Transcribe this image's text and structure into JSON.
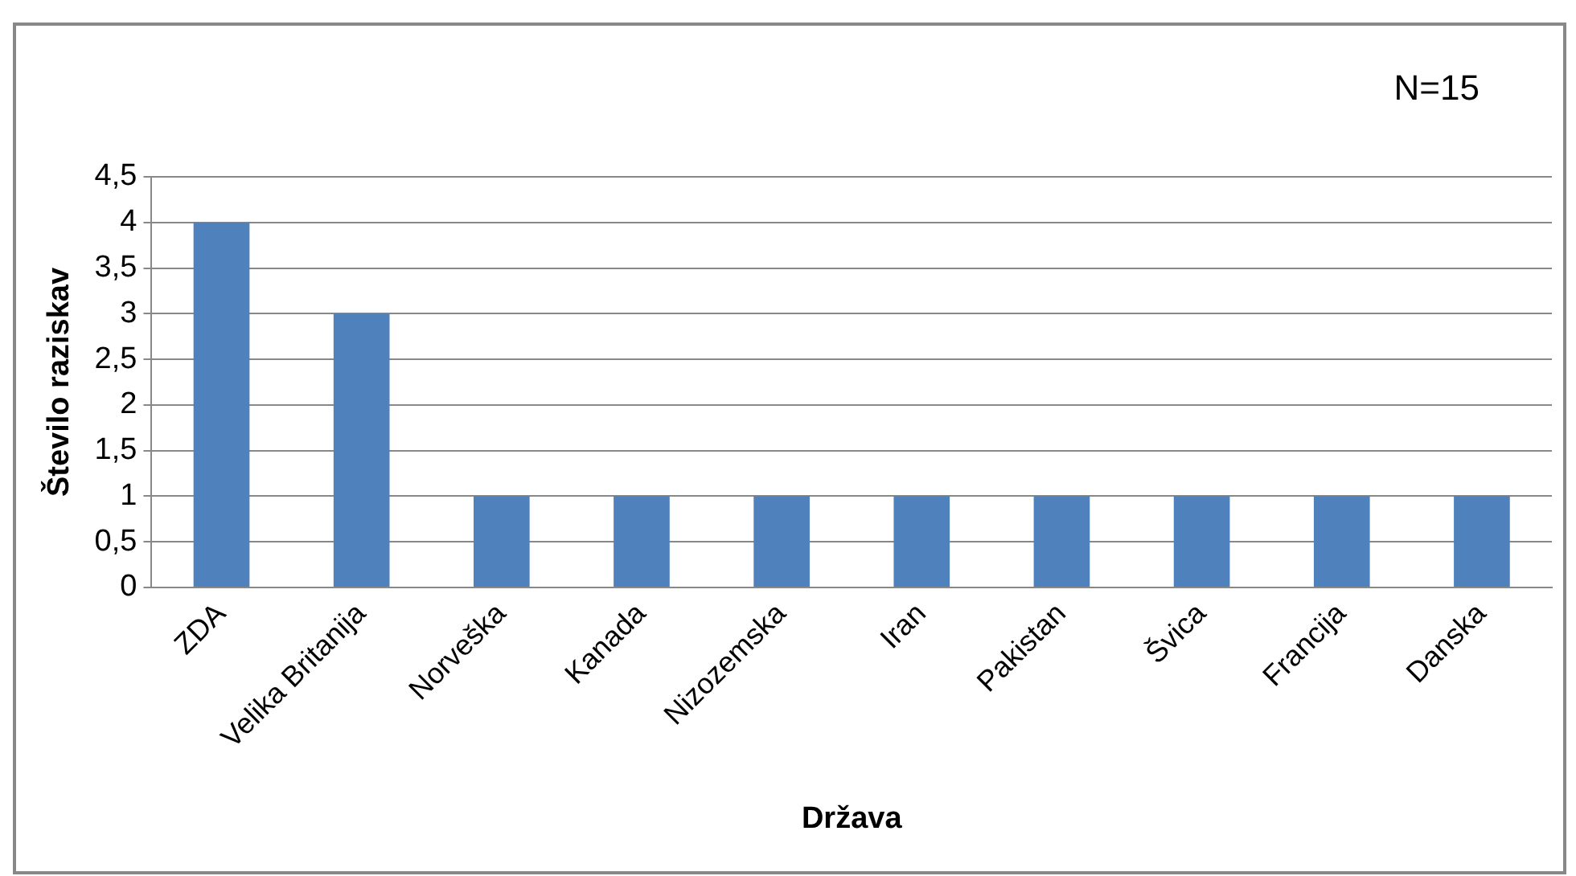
{
  "chart_data": {
    "type": "bar",
    "xlabel": "Država",
    "ylabel": "Število raziskav",
    "annotations": [
      "N=15"
    ],
    "categories": [
      "ZDA",
      "Velika Britanija",
      "Norveška",
      "Kanada",
      "Nizozemska",
      "Iran",
      "Pakistan",
      "Švica",
      "Francija",
      "Danska"
    ],
    "values": [
      4,
      3,
      1,
      1,
      1,
      1,
      1,
      1,
      1,
      1
    ],
    "color": "#4f81bd",
    "ylim": [
      0,
      4.5
    ],
    "yticks": [
      0,
      {
        "value": 0.5,
        "label": "0,5"
      },
      1,
      {
        "value": 1.5,
        "label": "1,5"
      },
      2,
      {
        "value": 2.5,
        "label": "2,5"
      },
      3,
      {
        "value": 3.5,
        "label": "3,5"
      },
      4,
      {
        "value": 4.5,
        "label": "4,5"
      }
    ],
    "grid": "y",
    "legend": false
  }
}
